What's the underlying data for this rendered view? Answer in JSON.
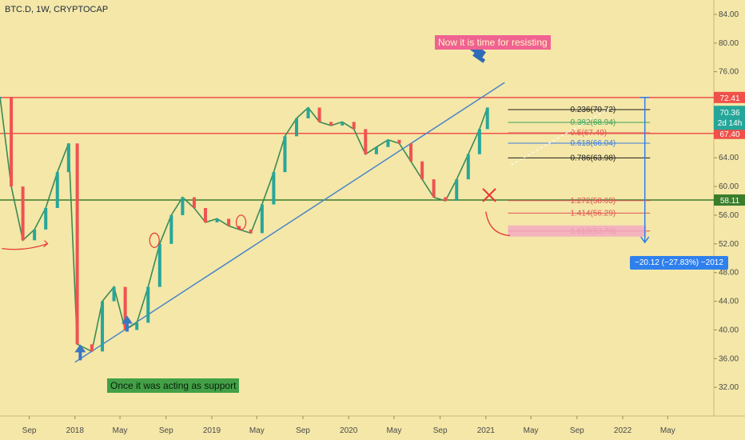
{
  "header": {
    "symbol": "BTC.D, 1W, CRYPTOCAP"
  },
  "chart_data": {
    "type": "line",
    "ylim": [
      28,
      86
    ],
    "y_ticks": [
      32,
      36,
      40,
      44,
      48,
      52,
      56,
      60,
      64,
      68,
      72,
      76,
      80,
      84
    ],
    "y_tick_labels": [
      "32.00",
      "36.00",
      "40.00",
      "44.00",
      "48.00",
      "52.00",
      "56.00",
      "60.00",
      "64.00",
      "68.00",
      "72.00",
      "76.00",
      "80.00",
      "84.00"
    ],
    "x_ticks": [
      "2017-09-01",
      "2018-01-01",
      "2018-05-01",
      "2018-09-01",
      "2019-01-01",
      "2019-05-01",
      "2019-09-01",
      "2020-01-01",
      "2020-05-01",
      "2020-09-01",
      "2021-01-01",
      "2021-05-01",
      "2021-09-01",
      "2022-01-01",
      "2022-05-01"
    ],
    "x_tick_labels": [
      "Sep",
      "2018",
      "May",
      "Sep",
      "2019",
      "May",
      "Sep",
      "2020",
      "May",
      "Sep",
      "2021",
      "May",
      "Sep",
      "2022",
      "May"
    ],
    "xlim": [
      "2017-06-15",
      "2022-09-01"
    ],
    "series": [
      {
        "x": [
          "2017-06-15",
          "2017-07-15",
          "2017-08-15",
          "2017-09-15",
          "2017-10-15",
          "2017-11-15",
          "2017-12-15",
          "2018-01-07",
          "2018-02-15",
          "2018-03-15",
          "2018-04-15",
          "2018-05-15",
          "2018-06-15",
          "2018-07-15",
          "2018-08-15",
          "2018-09-15",
          "2018-10-15",
          "2018-11-15",
          "2018-12-15",
          "2019-01-15",
          "2019-02-15",
          "2019-03-15",
          "2019-04-15",
          "2019-05-15",
          "2019-06-15",
          "2019-07-15",
          "2019-08-15",
          "2019-09-15",
          "2019-10-15",
          "2019-11-15",
          "2019-12-15",
          "2020-01-15",
          "2020-02-15",
          "2020-03-15",
          "2020-04-15",
          "2020-05-15",
          "2020-06-15",
          "2020-07-15",
          "2020-08-15",
          "2020-09-15",
          "2020-10-15",
          "2020-11-15",
          "2020-12-15",
          "2021-01-05"
        ],
        "values": [
          72.5,
          60.0,
          52.5,
          54.0,
          57.0,
          62.0,
          66.0,
          38.0,
          37.0,
          44.0,
          46.0,
          40.0,
          41.0,
          46.0,
          52.0,
          56.0,
          58.5,
          57.0,
          55.0,
          55.5,
          54.5,
          54.0,
          53.5,
          57.5,
          62.0,
          67.0,
          69.5,
          71.0,
          69.0,
          68.5,
          69.0,
          68.0,
          64.5,
          65.5,
          66.5,
          66.0,
          63.5,
          61.0,
          58.5,
          58.0,
          61.0,
          64.5,
          68.0,
          71.0
        ]
      }
    ],
    "levels": [
      {
        "label": "72.41",
        "value": 72.41,
        "color": "#f0504a"
      },
      {
        "label": "58.11",
        "value": 58.11,
        "color": "#3a7d2c"
      },
      {
        "label": "67.40",
        "value": 67.4,
        "color": "#f0504a"
      }
    ],
    "price_label": {
      "text": "70.36",
      "value": 70.36,
      "color": "#26a69a"
    },
    "countdown_label": {
      "text": "2d 14h",
      "color": "#26a69a"
    },
    "trendline": {
      "start": [
        "2018-01-01",
        35.5
      ],
      "end": [
        "2021-02-20",
        74.5
      ]
    },
    "fib_levels": [
      {
        "text": "0.236(70.72)",
        "value": 70.72,
        "color": "#1e1e1e"
      },
      {
        "text": "0.382(68.94)",
        "value": 68.94,
        "color": "#3aa35a"
      },
      {
        "text": "0.5(67.49)",
        "value": 67.49,
        "color": "#e05555"
      },
      {
        "text": "0.618(66.04)",
        "value": 66.04,
        "color": "#3d7de0"
      },
      {
        "text": "0.786(63.98)",
        "value": 63.98,
        "color": "#1e1e1e"
      },
      {
        "text": "1.272(58.03)",
        "value": 58.03,
        "color": "#e05555"
      },
      {
        "text": "1.414(56.29)",
        "value": 56.29,
        "color": "#e05555"
      },
      {
        "text": "1.618(53.79)",
        "value": 53.79,
        "color": "#e05555"
      }
    ],
    "measurement": {
      "text": "−20.12 (−27.83%) −2012"
    },
    "annotations": [
      {
        "text": "Now it is time for resisting"
      },
      {
        "text": "Once it was acting as support"
      }
    ]
  }
}
